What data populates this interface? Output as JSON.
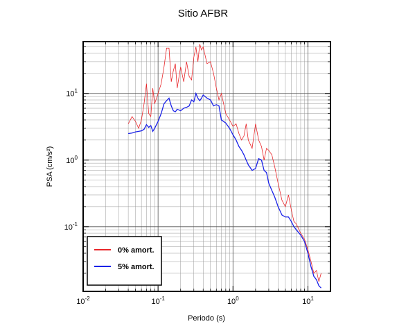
{
  "chart_data": {
    "type": "line",
    "title": "Sitio AFBR",
    "xlabel": "Periodo (s)",
    "ylabel": "PSA (cm/s²)",
    "x": [
      0.04,
      0.045,
      0.05,
      0.055,
      0.06,
      0.065,
      0.07,
      0.075,
      0.08,
      0.085,
      0.09,
      0.1,
      0.11,
      0.12,
      0.13,
      0.14,
      0.15,
      0.16,
      0.17,
      0.18,
      0.2,
      0.22,
      0.24,
      0.26,
      0.28,
      0.3,
      0.32,
      0.34,
      0.36,
      0.38,
      0.4,
      0.45,
      0.5,
      0.55,
      0.6,
      0.65,
      0.7,
      0.75,
      0.8,
      0.9,
      1.0,
      1.1,
      1.2,
      1.3,
      1.4,
      1.5,
      1.6,
      1.8,
      2.0,
      2.2,
      2.4,
      2.6,
      2.8,
      3.0,
      3.3,
      3.6,
      4.0,
      4.5,
      5.0,
      5.5,
      6.0,
      6.5,
      7.0,
      8.0,
      9.0,
      10,
      11,
      12,
      13,
      14,
      15
    ],
    "series": [
      {
        "name": "0% amort.",
        "color": "#e8262a",
        "values": [
          3.5,
          4.5,
          3.8,
          3.0,
          4.0,
          7,
          14,
          5,
          4.5,
          12,
          7,
          10,
          14,
          25,
          48,
          48,
          15,
          22,
          28,
          12,
          25,
          15,
          30,
          18,
          16,
          35,
          50,
          30,
          55,
          45,
          50,
          28,
          30,
          20,
          12,
          8,
          10,
          7,
          5,
          4,
          3.2,
          3.5,
          2.5,
          2.0,
          2.3,
          3.5,
          2.0,
          1.5,
          3.5,
          2.0,
          1.6,
          1.0,
          1.5,
          1.4,
          1.2,
          0.8,
          0.45,
          0.25,
          0.2,
          0.3,
          0.18,
          0.12,
          0.11,
          0.08,
          0.065,
          0.045,
          0.03,
          0.02,
          0.022,
          0.015,
          0.02
        ]
      },
      {
        "name": "5% amort.",
        "color": "#1a22e8",
        "values": [
          2.5,
          2.55,
          2.65,
          2.7,
          2.75,
          2.9,
          3.4,
          3.1,
          3.3,
          2.7,
          3.0,
          3.8,
          5.0,
          7.0,
          7.8,
          8.5,
          6.5,
          5.5,
          5.3,
          5.8,
          5.5,
          6.0,
          6.2,
          6.5,
          8.0,
          7.5,
          10,
          8.5,
          7.8,
          8.5,
          9.5,
          8.5,
          8,
          6.5,
          6.8,
          6.5,
          4.0,
          3.8,
          3.6,
          3.0,
          2.4,
          2.0,
          1.6,
          1.4,
          1.2,
          1.0,
          0.85,
          0.7,
          0.75,
          1.05,
          1.0,
          0.7,
          0.65,
          0.45,
          0.35,
          0.28,
          0.2,
          0.15,
          0.14,
          0.14,
          0.12,
          0.1,
          0.09,
          0.075,
          0.06,
          0.04,
          0.025,
          0.018,
          0.016,
          0.013,
          0.012
        ]
      }
    ],
    "xlog": true,
    "ylog": true,
    "xlim": [
      0.01,
      20
    ],
    "ylim": [
      0.0107,
      60
    ],
    "xticks": [
      {
        "value": 0.01,
        "label": "10",
        "power": "-2"
      },
      {
        "value": 0.1,
        "label": "10",
        "power": "-1"
      },
      {
        "value": 1,
        "label": "10",
        "power": "0"
      },
      {
        "value": 10,
        "label": "10",
        "power": "1"
      }
    ],
    "yticks": [
      {
        "value": 0.1,
        "label": "10",
        "power": "-1"
      },
      {
        "value": 1,
        "label": "10",
        "power": "0"
      },
      {
        "value": 10,
        "label": "10",
        "power": "1"
      }
    ],
    "grid": true,
    "minor_grid": true,
    "legend": "lower left"
  }
}
